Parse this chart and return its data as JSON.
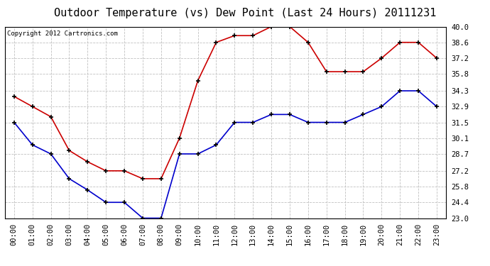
{
  "title": "Outdoor Temperature (vs) Dew Point (Last 24 Hours) 20111231",
  "copyright": "Copyright 2012 Cartronics.com",
  "x_labels": [
    "00:00",
    "01:00",
    "02:00",
    "03:00",
    "04:00",
    "05:00",
    "06:00",
    "07:00",
    "08:00",
    "09:00",
    "10:00",
    "11:00",
    "12:00",
    "13:00",
    "14:00",
    "15:00",
    "16:00",
    "17:00",
    "18:00",
    "19:00",
    "20:00",
    "21:00",
    "22:00",
    "23:00"
  ],
  "temp_values": [
    31.5,
    29.5,
    28.7,
    26.5,
    25.5,
    24.4,
    24.4,
    23.0,
    23.0,
    28.7,
    28.7,
    29.5,
    31.5,
    31.5,
    32.2,
    32.2,
    31.5,
    31.5,
    31.5,
    32.2,
    32.9,
    34.3,
    34.3,
    32.9
  ],
  "dew_values": [
    33.8,
    32.9,
    32.0,
    29.0,
    28.0,
    27.2,
    27.2,
    26.5,
    26.5,
    30.1,
    35.2,
    38.6,
    39.2,
    39.2,
    40.0,
    40.0,
    38.6,
    36.0,
    36.0,
    36.0,
    37.2,
    38.6,
    38.6,
    37.2
  ],
  "temp_color": "#0000cc",
  "dew_color": "#cc0000",
  "bg_color": "#ffffff",
  "grid_color": "#c0c0c0",
  "ylim_min": 23.0,
  "ylim_max": 40.0,
  "yticks": [
    23.0,
    24.4,
    25.8,
    27.2,
    28.7,
    30.1,
    31.5,
    32.9,
    34.3,
    35.8,
    37.2,
    38.6,
    40.0
  ],
  "title_fontsize": 11,
  "tick_fontsize": 7.5,
  "copyright_fontsize": 6.5
}
